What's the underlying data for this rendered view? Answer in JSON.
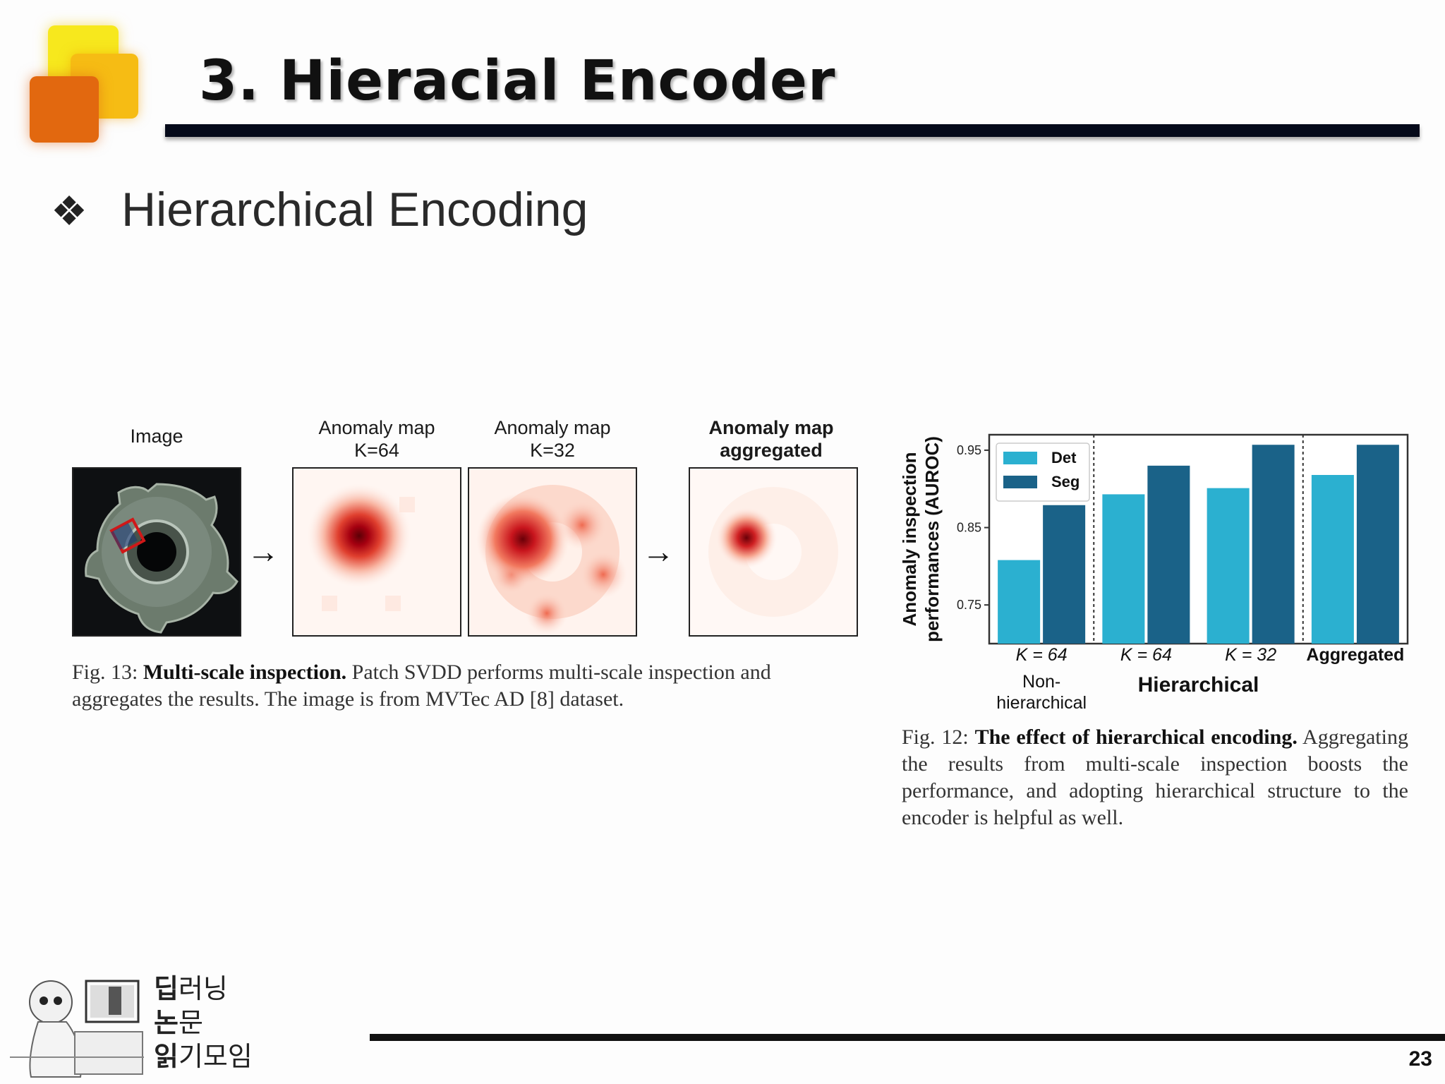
{
  "slide": {
    "title": "3. Hieracial Encoder",
    "bullet_glyph": "❖",
    "bullet_text": "Hierarchical Encoding",
    "page_number": "23"
  },
  "figure13": {
    "panels": [
      {
        "label_line1": "Image",
        "label_line2": ""
      },
      {
        "label_line1": "Anomaly map",
        "label_line2": "K=64"
      },
      {
        "label_line1": "Anomaly map",
        "label_line2": "K=32"
      },
      {
        "label_line1": "Anomaly map",
        "label_line2": "aggregated"
      }
    ],
    "arrow_glyph": "→",
    "caption_prefix": "Fig. 13: ",
    "caption_bold": "Multi-scale inspection.",
    "caption_rest": " Patch SVDD performs multi-scale inspection and aggregates the results. The image is from MVTec AD [8] dataset."
  },
  "figure12": {
    "caption_prefix": "Fig. 12: ",
    "caption_bold": "The effect of hierarchical encoding.",
    "caption_rest": " Aggregating the results from multi-scale inspection boosts the performance, and adopting hierarchical structure to the encoder is helpful as well."
  },
  "chart_data": {
    "type": "bar",
    "categories": [
      "K = 64",
      "K = 64",
      "K = 32",
      "Aggregated"
    ],
    "group_labels": [
      "Non-\nhierarchical",
      "Hierarchical"
    ],
    "series": [
      {
        "name": "Det",
        "values": [
          0.808,
          0.893,
          0.901,
          0.918
        ],
        "color": "#2bb0d0"
      },
      {
        "name": "Seg",
        "values": [
          0.879,
          0.93,
          0.957,
          0.957
        ],
        "color": "#1a6288"
      }
    ],
    "ylabel": "Anomaly inspection\nperformances (AUROC)",
    "ylim": [
      0.7,
      0.97
    ],
    "yticks": [
      "0.75",
      "0.85",
      "0.95"
    ],
    "legend_position": "top-left",
    "separators_after_category": [
      0,
      2
    ]
  },
  "footer": {
    "brand_line1_bold": "딥",
    "brand_line1_rest": "러닝",
    "brand_line2_bold": "논",
    "brand_line2_rest": "문",
    "brand_line3_bold": "읽",
    "brand_line3_rest": "기모임"
  }
}
